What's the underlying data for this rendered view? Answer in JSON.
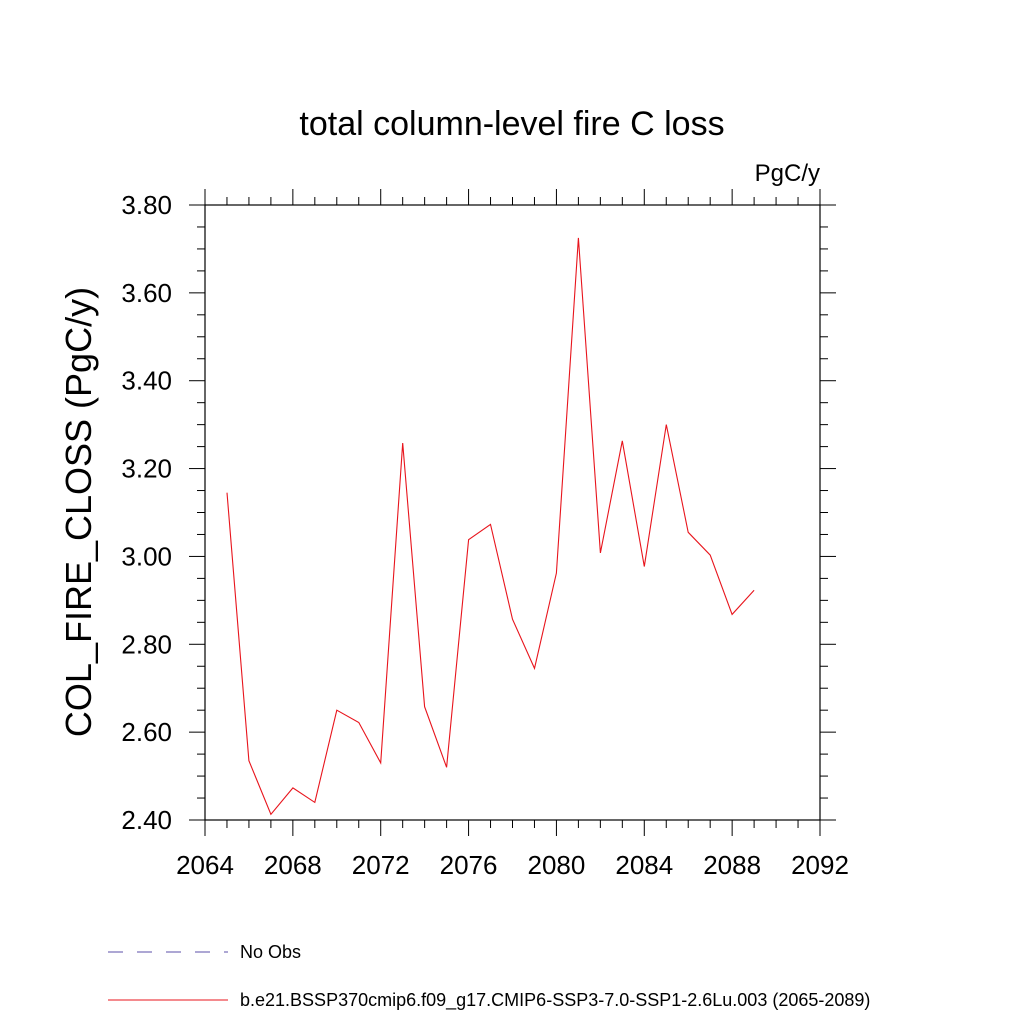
{
  "chart_data": {
    "type": "line",
    "title": "total column-level fire C loss",
    "units_label": "PgC/y",
    "ylabel": "COL_FIRE_CLOSS  (PgC/y)",
    "xlabel": "",
    "xlim": [
      2064,
      2092
    ],
    "ylim": [
      2.4,
      3.8
    ],
    "x_ticks": [
      2064,
      2068,
      2072,
      2076,
      2080,
      2084,
      2088,
      2092
    ],
    "x_tick_labels": [
      "2064",
      "2068",
      "2072",
      "2076",
      "2080",
      "2084",
      "2088",
      "2092"
    ],
    "y_ticks": [
      2.4,
      2.6,
      2.8,
      3.0,
      3.2,
      3.4,
      3.6,
      3.8
    ],
    "y_tick_labels": [
      "2.40",
      "2.60",
      "2.80",
      "3.00",
      "3.20",
      "3.40",
      "3.60",
      "3.80"
    ],
    "grid": false,
    "legend_position": "bottom",
    "series": [
      {
        "name": "b.e21.BSSP370cmip6.f09_g17.CMIP6-SSP3-7.0-SSP1-2.6Lu.003 (2065-2089)",
        "color": "#e8141c",
        "x": [
          2065,
          2066,
          2067,
          2068,
          2069,
          2070,
          2071,
          2072,
          2073,
          2074,
          2075,
          2076,
          2077,
          2078,
          2079,
          2080,
          2081,
          2082,
          2083,
          2084,
          2085,
          2086,
          2087,
          2088,
          2089
        ],
        "values": [
          3.145,
          2.535,
          2.413,
          2.473,
          2.44,
          2.65,
          2.622,
          2.53,
          3.258,
          2.658,
          2.52,
          3.038,
          3.073,
          2.857,
          2.745,
          2.962,
          3.725,
          3.008,
          3.263,
          2.977,
          3.3,
          3.055,
          3.003,
          2.868,
          2.923
        ]
      }
    ],
    "legend": [
      {
        "label": "No Obs",
        "color": "#5b4fa8",
        "style": "dashed"
      },
      {
        "label": "b.e21.BSSP370cmip6.f09_g17.CMIP6-SSP3-7.0-SSP1-2.6Lu.003 (2065-2089)",
        "color": "#e8141c",
        "style": "solid"
      }
    ]
  }
}
